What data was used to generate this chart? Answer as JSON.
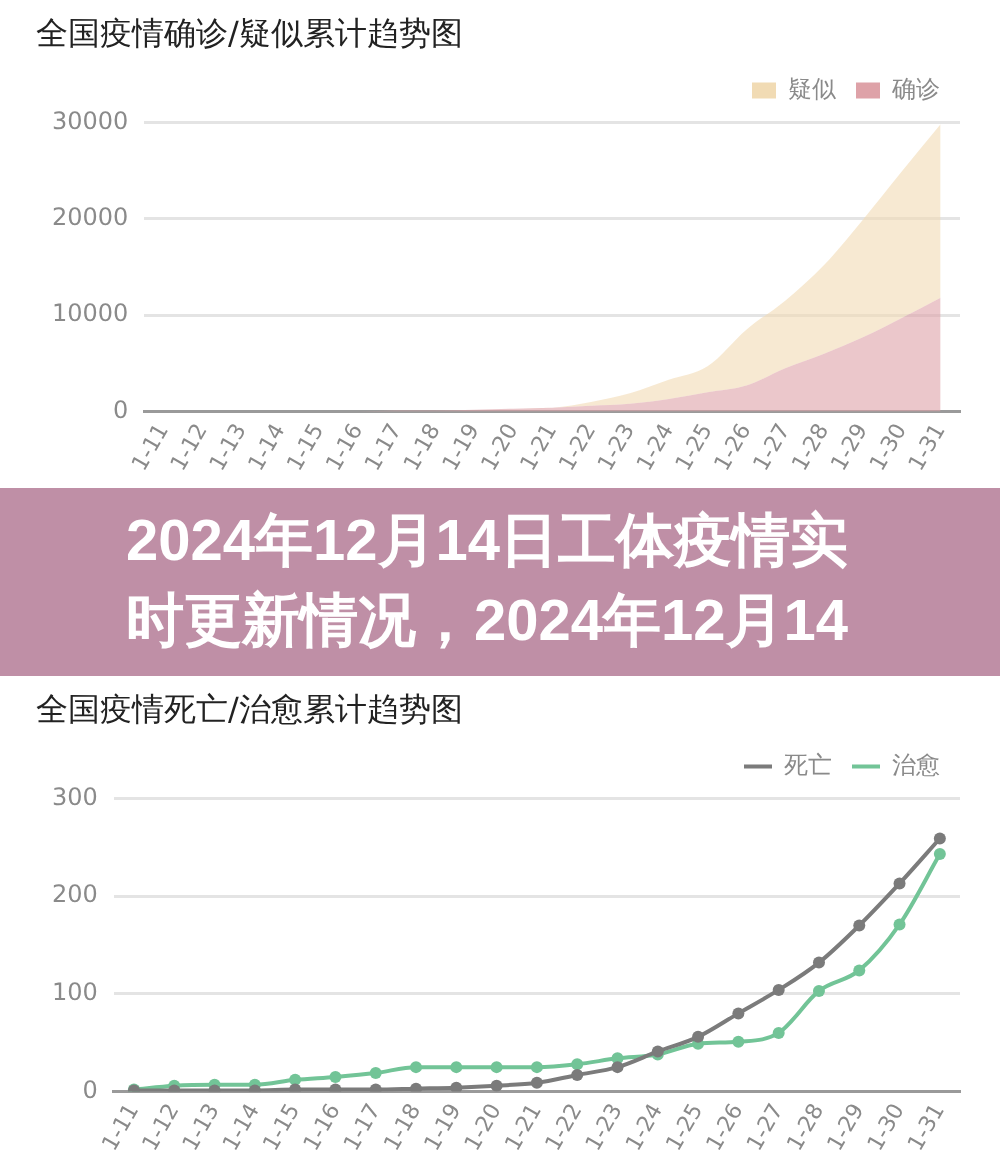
{
  "chart_data": [
    {
      "type": "area",
      "title": "全国疫情确诊/疑似累计趋势图",
      "categories": [
        "1-11",
        "1-12",
        "1-13",
        "1-14",
        "1-15",
        "1-16",
        "1-17",
        "1-18",
        "1-19",
        "1-20",
        "1-21",
        "1-22",
        "1-23",
        "1-24",
        "1-25",
        "1-26",
        "1-27",
        "1-28",
        "1-29",
        "1-30",
        "1-31"
      ],
      "series": [
        {
          "name": "确诊",
          "color": "#dea2a8",
          "values": [
            0,
            0,
            0,
            0,
            0,
            0,
            100,
            100,
            200,
            300,
            400,
            600,
            800,
            1300,
            2000,
            2700,
            4500,
            6000,
            7700,
            9700,
            11800
          ]
        },
        {
          "name": "疑似",
          "color": "#f1dbb4",
          "values": [
            0,
            0,
            0,
            0,
            0,
            0,
            0,
            0,
            0,
            0,
            0,
            400,
            1100,
            2000,
            2700,
            5800,
            7000,
            9200,
            12200,
            15200,
            18000
          ]
        }
      ],
      "stacked": true,
      "ylim": [
        0,
        30000
      ],
      "yticks": [
        0,
        10000,
        20000,
        30000
      ],
      "grid": "y",
      "legend": "top right"
    },
    {
      "type": "other",
      "title": "2024年12月14日工体疫情实时更新情况，2024年12月14"
    },
    {
      "type": "line",
      "title": "全国疫情死亡/治愈累计趋势图",
      "categories": [
        "1-11",
        "1-12",
        "1-13",
        "1-14",
        "1-15",
        "1-16",
        "1-17",
        "1-18",
        "1-19",
        "1-20",
        "1-21",
        "1-22",
        "1-23",
        "1-24",
        "1-25",
        "1-26",
        "1-27",
        "1-28",
        "1-29",
        "1-30",
        "1-31"
      ],
      "series": [
        {
          "name": "死亡",
          "color": "#7b7b7b",
          "values": [
            1,
            1,
            1,
            1,
            2,
            2,
            2,
            3,
            4,
            6,
            9,
            17,
            25,
            41,
            56,
            80,
            104,
            132,
            170,
            213,
            259
          ]
        },
        {
          "name": "治愈",
          "color": "#72c497",
          "values": [
            2,
            6,
            7,
            7,
            12,
            15,
            19,
            25,
            25,
            25,
            25,
            28,
            34,
            38,
            49,
            51,
            60,
            103,
            124,
            171,
            243
          ]
        }
      ],
      "ylim": [
        0,
        300
      ],
      "yticks": [
        0,
        100,
        200,
        300
      ],
      "grid": "y",
      "legend": "top right",
      "marker": "circle",
      "line_style": "solid"
    }
  ]
}
